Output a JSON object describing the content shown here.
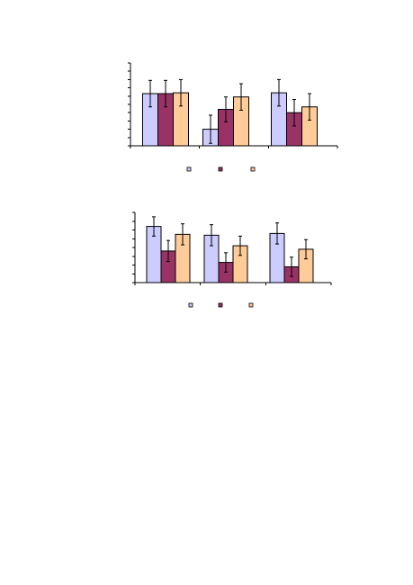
{
  "colors": {
    "series1": "#ccccff",
    "series2": "#993366",
    "series3": "#ffcc99"
  },
  "chart_data": [
    {
      "type": "bar",
      "categories": [
        "",
        "",
        ""
      ],
      "ylim": [
        0,
        10
      ],
      "yticks": [
        0,
        1,
        2,
        3,
        4,
        5,
        6,
        7,
        8,
        9,
        10
      ],
      "grid": false,
      "legend_position": "bottom",
      "series": [
        {
          "values": [
            6.3,
            6.3,
            6.4
          ],
          "errors": [
            1.6,
            1.6,
            1.6
          ]
        },
        {
          "values": [
            2.0,
            4.4,
            5.9
          ],
          "errors": [
            1.7,
            1.5,
            1.6
          ]
        },
        {
          "values": [
            6.4,
            4.0,
            4.7
          ],
          "errors": [
            1.6,
            1.6,
            1.6
          ]
        }
      ],
      "series_order": "per-category"
    },
    {
      "type": "bar",
      "categories": [
        "",
        "",
        ""
      ],
      "ylim": [
        0,
        8
      ],
      "yticks": [
        0,
        1,
        2,
        3,
        4,
        5,
        6,
        7,
        8
      ],
      "grid": false,
      "legend_position": "bottom",
      "series": [
        {
          "values": [
            6.4,
            3.6,
            5.5
          ],
          "errors": [
            1.1,
            1.2,
            1.2
          ]
        },
        {
          "values": [
            5.4,
            2.3,
            4.2
          ],
          "errors": [
            1.2,
            1.1,
            1.1
          ]
        },
        {
          "values": [
            5.6,
            1.8,
            3.8
          ],
          "errors": [
            1.2,
            1.1,
            1.1
          ]
        }
      ],
      "series_order": "per-category"
    }
  ]
}
